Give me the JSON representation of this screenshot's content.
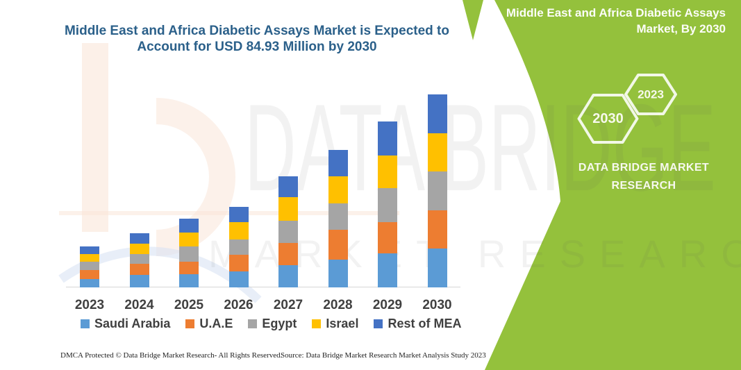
{
  "chart": {
    "title_line1": "Middle East and Africa Diabetic Assays Market is Expected to",
    "title_line2": "Account for USD 84.93 Million by 2030",
    "title_color": "#2B608A"
  },
  "chart_data": {
    "type": "bar",
    "stacked": true,
    "title": "Middle East and Africa Diabetic Assays Market is Expected to Account for USD 84.93 Million by 2030",
    "value_unit": "USD Million",
    "highlight_value": "USD 84.93 Million by 2030",
    "categories": [
      "2023",
      "2024",
      "2025",
      "2026",
      "2027",
      "2028",
      "2029",
      "2030"
    ],
    "series": [
      {
        "name": "Saudi Arabia",
        "color": "#5B9BD5",
        "values": [
          3.8,
          5.5,
          5.8,
          6.9,
          9.9,
          12.2,
          15.0,
          17.0
        ]
      },
      {
        "name": "U.A.E",
        "color": "#ED7D31",
        "values": [
          3.8,
          4.9,
          5.6,
          7.6,
          9.8,
          13.2,
          13.8,
          16.9
        ]
      },
      {
        "name": "Egypt",
        "color": "#A5A5A5",
        "values": [
          3.7,
          4.3,
          6.6,
          6.6,
          9.5,
          11.5,
          15.0,
          17.0
        ]
      },
      {
        "name": "Israel",
        "color": "#FFC000",
        "values": [
          3.5,
          4.7,
          6.1,
          7.6,
          10.4,
          11.9,
          14.4,
          17.0
        ]
      },
      {
        "name": "Rest of MEA",
        "color": "#4472C4",
        "values": [
          3.3,
          4.3,
          6.1,
          6.8,
          9.2,
          11.7,
          14.7,
          17.0
        ]
      }
    ],
    "totals_estimated": [
      18.1,
      23.7,
      30.2,
      35.5,
      48.8,
      60.5,
      72.9,
      84.93
    ],
    "xlabel": "",
    "ylabel": "",
    "ylim": [
      0,
      90
    ],
    "grid": false,
    "y_axis_shown": false,
    "legend_position": "bottom"
  },
  "side_panel": {
    "panel_color": "#94C13C",
    "title_line1": "Middle East and Africa Diabetic Assays",
    "title_line2": "Market, By 2030",
    "hexagon_large_label": "2030",
    "hexagon_small_label": "2023",
    "brand_line1": "DATA BRIDGE MARKET",
    "brand_line2": "RESEARCH"
  },
  "watermark": {
    "big_text": "DATA BRIDGE",
    "row_text": "MARKET RESEARCH"
  },
  "footer": {
    "left_text": "DMCA Protected © Data Bridge Market Research-  All Rights Reserved.",
    "right_text": "Source: Data Bridge Market Research  Market Analysis Study 2023"
  }
}
